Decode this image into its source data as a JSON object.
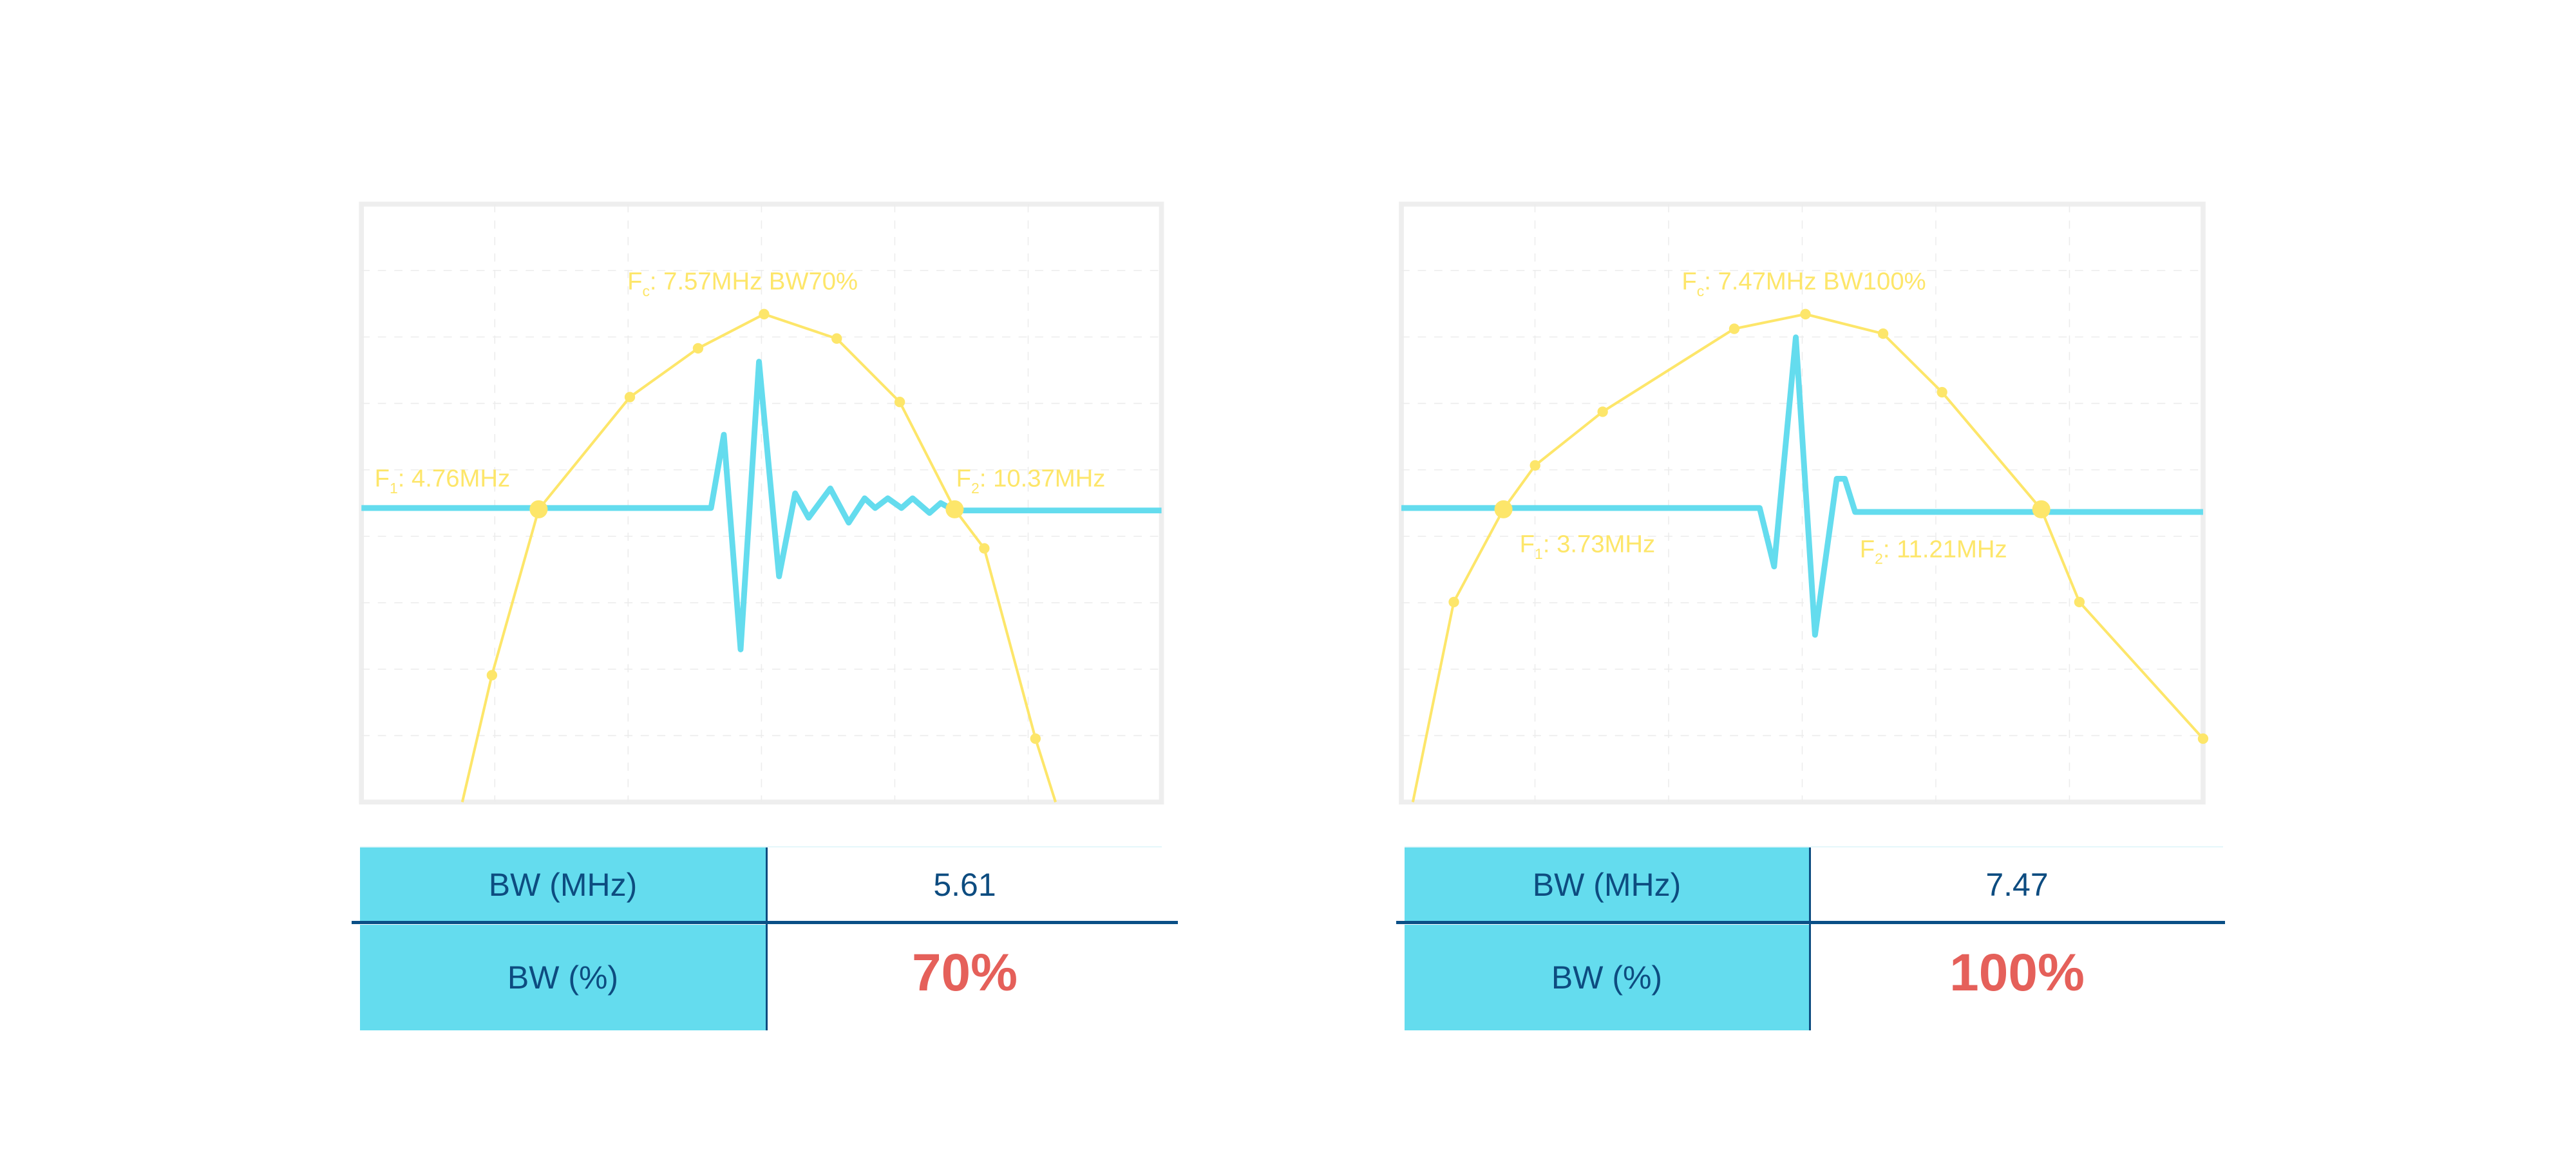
{
  "colors": {
    "response_curve": "#fde66a",
    "waveform": "#64dcee",
    "grid": "#ececec",
    "frame": "#eeeeee",
    "table_header_bg": "#64dcee",
    "table_text": "#0d4c80",
    "highlight_value": "#e5605a"
  },
  "chart_data": [
    {
      "type": "line",
      "grid": true,
      "labels": {
        "fc_prefix": "F",
        "fc_sub": "c",
        "fc_text": ": 7.57MHz BW70%",
        "f1_prefix": "F",
        "f1_sub": "1",
        "f1_text": ": 4.76MHz",
        "f2_prefix": "F",
        "f2_sub": "2",
        "f2_text": ": 10.37MHz"
      },
      "frequency_range_mhz": [
        2.37,
        13.16
      ],
      "markers_mhz": [
        4.76,
        10.37
      ],
      "response": {
        "freq_mhz": [
          3.73,
          4.13,
          4.76,
          5.99,
          6.91,
          7.8,
          8.78,
          9.63,
          10.37,
          10.77,
          11.46,
          11.73
        ],
        "rel_amplitude": [
          0,
          0.26,
          0.6,
          0.83,
          0.93,
          1.0,
          0.95,
          0.82,
          0.6,
          0.52,
          0.13,
          0
        ]
      },
      "waveform": {
        "t": [
          0,
          0.437,
          0.453,
          0.474,
          0.497,
          0.522,
          0.542,
          0.559,
          0.586,
          0.609,
          0.629,
          0.642,
          0.658,
          0.675,
          0.689,
          0.71,
          0.724,
          0.741,
          1
        ],
        "amplitude": [
          0,
          0,
          0.15,
          -0.29,
          0.3,
          -0.14,
          0.03,
          -0.02,
          0.04,
          -0.03,
          0.02,
          0,
          0.02,
          0,
          0.02,
          -0.01,
          0.01,
          -0.005,
          -0.005
        ]
      },
      "table": {
        "row1_label": "BW (MHz)",
        "row1_value": "5.61",
        "row2_label": "BW (%)",
        "row2_value": "70%"
      }
    },
    {
      "type": "line",
      "grid": true,
      "labels": {
        "fc_prefix": "F",
        "fc_sub": "c",
        "fc_text": ": 7.47MHz BW100%",
        "f1_prefix": "F",
        "f1_sub": "1",
        "f1_text": ": 3.73MHz",
        "f2_prefix": "F",
        "f2_sub": "2",
        "f2_text": ": 11.21MHz"
      },
      "frequency_range_mhz": [
        2.31,
        13.46
      ],
      "markers_mhz": [
        3.73,
        11.21
      ],
      "response": {
        "freq_mhz": [
          2.47,
          3.04,
          3.73,
          4.17,
          5.11,
          6.94,
          7.93,
          9.01,
          9.83,
          11.21,
          11.74,
          13.46
        ],
        "rel_amplitude": [
          0,
          0.41,
          0.6,
          0.69,
          0.8,
          0.97,
          1.0,
          0.96,
          0.84,
          0.6,
          0.41,
          0.13
        ]
      },
      "waveform": {
        "t": [
          0,
          0.447,
          0.465,
          0.492,
          0.516,
          0.543,
          0.553,
          0.566,
          1
        ],
        "amplitude": [
          0,
          0,
          -0.12,
          0.35,
          -0.26,
          0.06,
          0.06,
          -0.008,
          -0.008
        ]
      },
      "table": {
        "row1_label": "BW (MHz)",
        "row1_value": "7.47",
        "row2_label": "BW (%)",
        "row2_value": "100%"
      }
    }
  ]
}
